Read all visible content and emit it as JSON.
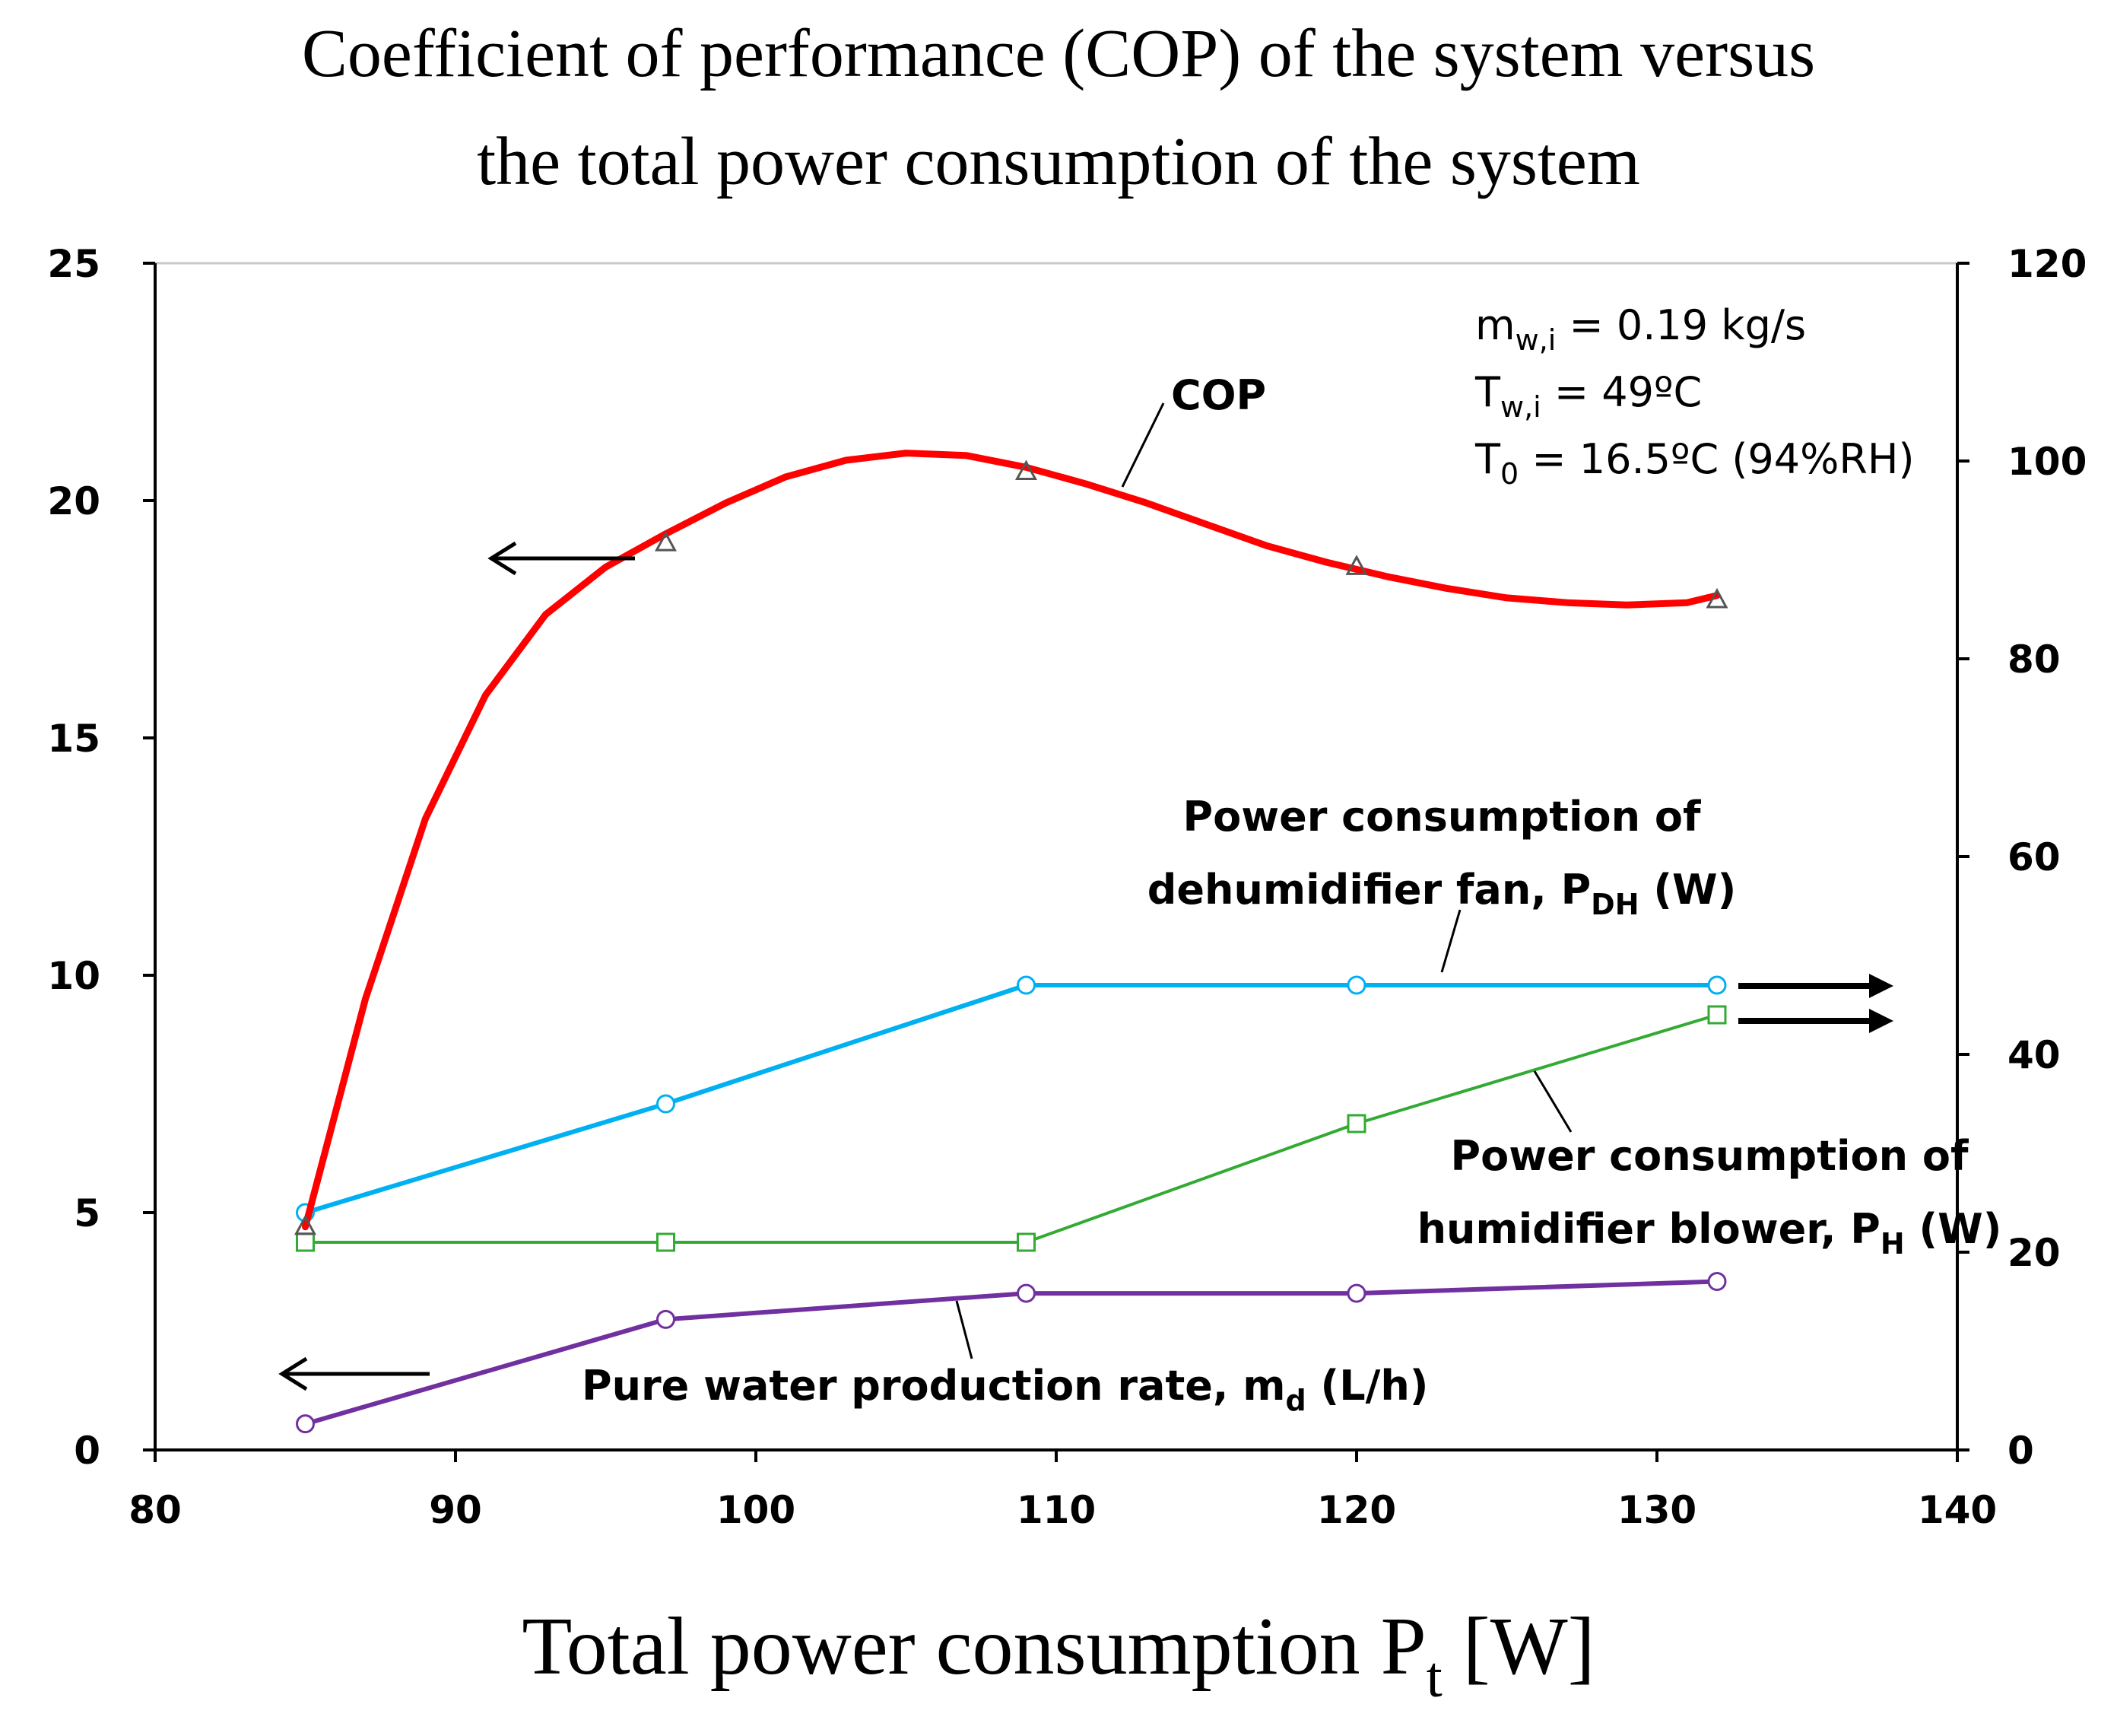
{
  "chart_data": {
    "type": "line",
    "title": {
      "line1": "Coefficient of performance (COP) of the system versus",
      "line2": "the total power consumption of the system"
    },
    "xlabel": {
      "text": "Total power consumption P",
      "sub": "t",
      "unit": " [W]"
    },
    "x_axis": {
      "range": [
        80,
        140
      ],
      "ticks": [
        "80",
        "90",
        "100",
        "110",
        "120",
        "130",
        "140"
      ]
    },
    "y_left": {
      "range": [
        0,
        25
      ],
      "ticks": [
        "0",
        "5",
        "10",
        "15",
        "20",
        "25"
      ]
    },
    "y_right": {
      "range": [
        0,
        120
      ],
      "ticks": [
        "0",
        "20",
        "40",
        "60",
        "80",
        "100",
        "120"
      ]
    },
    "x": [
      85,
      97,
      109,
      120,
      132
    ],
    "series": [
      {
        "name": "COP",
        "axis": "left",
        "marker": "triangle",
        "color": "#ff0000",
        "values": [
          4.7,
          19.1,
          20.6,
          18.6,
          17.9
        ],
        "smooth_curve": [
          [
            85,
            4.7
          ],
          [
            87,
            9.5
          ],
          [
            89,
            13.3
          ],
          [
            91,
            15.9
          ],
          [
            93,
            17.6
          ],
          [
            95,
            18.6
          ],
          [
            97,
            19.3
          ],
          [
            99,
            19.95
          ],
          [
            101,
            20.5
          ],
          [
            103,
            20.85
          ],
          [
            105,
            21.0
          ],
          [
            107,
            20.95
          ],
          [
            109,
            20.7
          ],
          [
            111,
            20.35
          ],
          [
            113,
            19.95
          ],
          [
            115,
            19.5
          ],
          [
            117,
            19.05
          ],
          [
            119,
            18.7
          ],
          [
            121,
            18.4
          ],
          [
            123,
            18.15
          ],
          [
            125,
            17.95
          ],
          [
            127,
            17.85
          ],
          [
            129,
            17.8
          ],
          [
            131,
            17.85
          ],
          [
            132,
            18.0
          ]
        ]
      },
      {
        "name": "Power consumption of dehumidifier fan, PDH (W)",
        "axis": "right",
        "marker": "circle",
        "color": "#00b0f0",
        "values": [
          24,
          35,
          47,
          47,
          47
        ]
      },
      {
        "name": "Power consumption of humidifier blower, PH (W)",
        "axis": "right",
        "marker": "square",
        "color": "#33aa33",
        "values": [
          21,
          21,
          21,
          33,
          44
        ]
      },
      {
        "name": "Pure water production rate, md (L/h)",
        "axis": "left",
        "marker": "circle",
        "color": "#7030a0",
        "values": [
          0.55,
          2.75,
          3.3,
          3.3,
          3.55
        ]
      }
    ],
    "annotations": {
      "cop_label": "COP",
      "dh_line1": "Power consumption of",
      "dh_line2": "dehumidifier fan, P",
      "dh_sub": "DH",
      "dh_unit": " (W)",
      "h_line1": "Power consumption of",
      "h_line2": "humidifier blower, P",
      "h_sub": "H",
      "h_unit": " (W)",
      "md_text": "Pure water production rate, m",
      "md_sub": "d",
      "md_unit": " (L/h)",
      "cond1_main": "m",
      "cond1_sub": "w,i",
      "cond1_rest": " = 0.19 kg/s",
      "cond2_main": "T",
      "cond2_sub": "w,i",
      "cond2_rest": " = 49ºC",
      "cond3_main": "T",
      "cond3_sub": "0",
      "cond3_rest": " = 16.5ºC (94%RH)"
    },
    "grid": false,
    "legend": "none"
  }
}
